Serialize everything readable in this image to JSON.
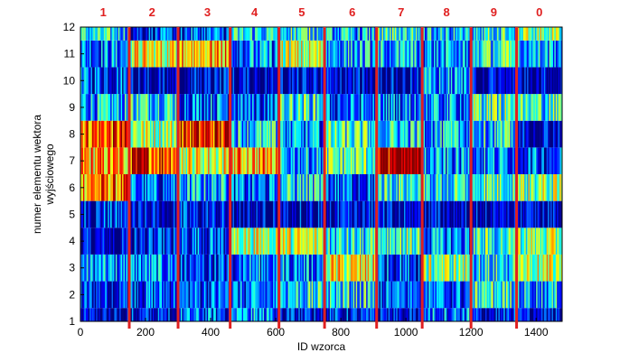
{
  "chart_data": {
    "type": "heatmap",
    "title": "",
    "xlabel": "ID wzorca",
    "ylabel_line1": "numer elementu wektora",
    "ylabel_line2": "wyjściowego",
    "xlim": [
      0,
      1480
    ],
    "ylim": [
      1,
      12
    ],
    "x_ticks": [
      0,
      200,
      400,
      600,
      800,
      1000,
      1200,
      1400
    ],
    "x_tick_labels": [
      "0",
      "200",
      "400",
      "600",
      "800",
      "1000",
      "1200",
      "1400"
    ],
    "y_ticks": [
      1,
      2,
      3,
      4,
      5,
      6,
      7,
      8,
      9,
      10,
      11,
      12
    ],
    "y_tick_labels": [
      "1",
      "2",
      "3",
      "4",
      "5",
      "6",
      "7",
      "8",
      "9",
      "10",
      "11",
      "12"
    ],
    "colormap": "jet",
    "class_boundaries": [
      150,
      300,
      460,
      610,
      750,
      910,
      1050,
      1200,
      1340
    ],
    "class_boundary_color": "#e02020",
    "class_labels": [
      {
        "label": "1",
        "x_center": 70
      },
      {
        "label": "2",
        "x_center": 220
      },
      {
        "label": "3",
        "x_center": 390
      },
      {
        "label": "4",
        "x_center": 535
      },
      {
        "label": "5",
        "x_center": 680
      },
      {
        "label": "6",
        "x_center": 835
      },
      {
        "label": "7",
        "x_center": 985
      },
      {
        "label": "8",
        "x_center": 1125
      },
      {
        "label": "9",
        "x_center": 1270
      },
      {
        "label": "0",
        "x_center": 1410
      }
    ],
    "segments": [
      {
        "start": 0,
        "end": 150,
        "levels": [
          0.05,
          0.15,
          0.25,
          0.05,
          0.15,
          0.75,
          0.7,
          0.8,
          0.3,
          0.2,
          0.25,
          0.35
        ]
      },
      {
        "start": 150,
        "end": 300,
        "levels": [
          0.1,
          0.2,
          0.25,
          0.1,
          0.05,
          0.2,
          0.85,
          0.55,
          0.4,
          0.05,
          0.6,
          0.15
        ]
      },
      {
        "start": 300,
        "end": 460,
        "levels": [
          0.2,
          0.2,
          0.15,
          0.2,
          0.1,
          0.3,
          0.6,
          0.85,
          0.25,
          0.05,
          0.7,
          0.2
        ]
      },
      {
        "start": 460,
        "end": 610,
        "levels": [
          0.25,
          0.2,
          0.25,
          0.55,
          0.05,
          0.2,
          0.7,
          0.35,
          0.2,
          0.05,
          0.25,
          0.35
        ]
      },
      {
        "start": 610,
        "end": 750,
        "levels": [
          0.1,
          0.35,
          0.25,
          0.55,
          0.1,
          0.35,
          0.3,
          0.25,
          0.4,
          0.05,
          0.55,
          0.4
        ]
      },
      {
        "start": 750,
        "end": 910,
        "levels": [
          0.1,
          0.35,
          0.6,
          0.35,
          0.05,
          0.2,
          0.45,
          0.4,
          0.2,
          0.05,
          0.3,
          0.3
        ]
      },
      {
        "start": 910,
        "end": 1050,
        "levels": [
          0.05,
          0.2,
          0.2,
          0.45,
          0.05,
          0.4,
          0.95,
          0.35,
          0.25,
          0.05,
          0.3,
          0.4
        ]
      },
      {
        "start": 1050,
        "end": 1200,
        "levels": [
          0.25,
          0.2,
          0.5,
          0.25,
          0.05,
          0.35,
          0.25,
          0.3,
          0.25,
          0.25,
          0.25,
          0.3
        ]
      },
      {
        "start": 1200,
        "end": 1340,
        "levels": [
          0.1,
          0.4,
          0.35,
          0.4,
          0.05,
          0.45,
          0.25,
          0.35,
          0.45,
          0.05,
          0.4,
          0.4
        ]
      },
      {
        "start": 1340,
        "end": 1480,
        "levels": [
          0.05,
          0.3,
          0.55,
          0.5,
          0.05,
          0.5,
          0.2,
          0.1,
          0.4,
          0.05,
          0.3,
          0.5
        ]
      }
    ]
  }
}
